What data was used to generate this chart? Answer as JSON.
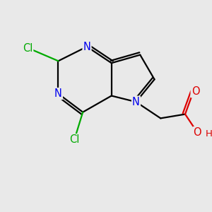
{
  "background_color": "#e9e9e9",
  "bond_color": "#000000",
  "bond_width": 1.6,
  "atom_colors": {
    "N": "#0000ee",
    "Cl": "#00aa00",
    "O": "#dd0000",
    "H": "#dd0000",
    "C": "#000000"
  },
  "font_size_atom": 10.5,
  "font_size_H": 9.5
}
